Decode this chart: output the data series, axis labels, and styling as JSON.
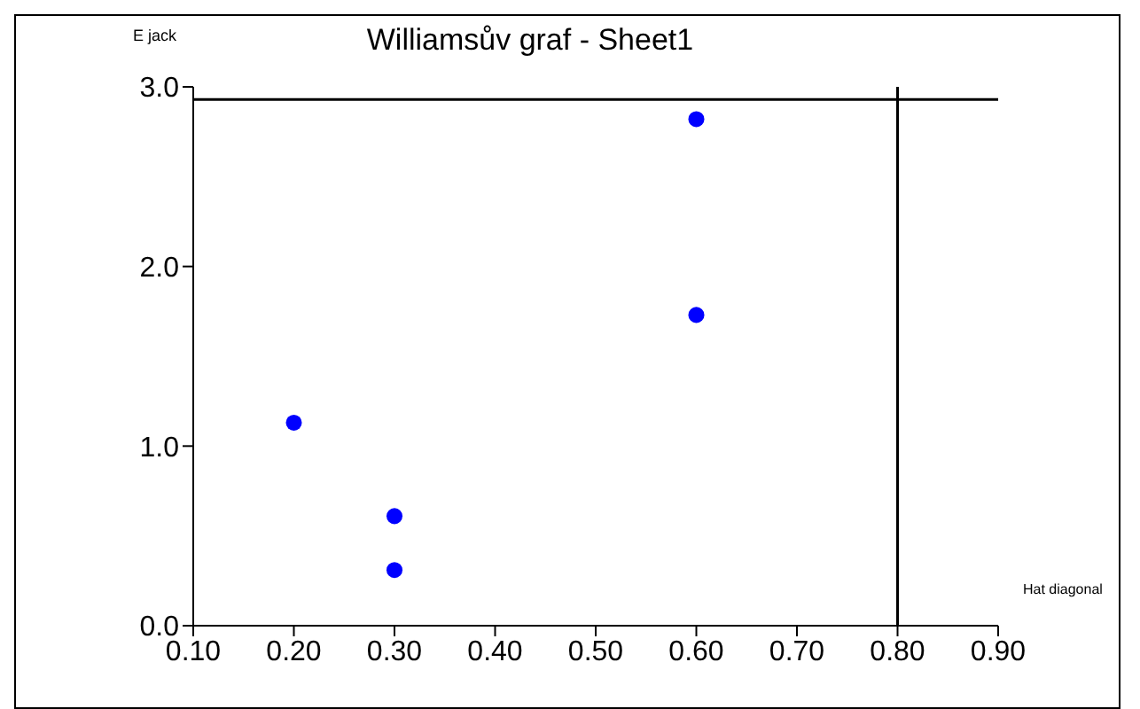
{
  "chart_data": {
    "type": "scatter",
    "title": "Williamsův graf - Sheet1",
    "xlabel": "Hat diagonal",
    "ylabel": "E jack",
    "x": [
      0.2,
      0.3,
      0.3,
      0.6,
      0.6
    ],
    "values": [
      1.13,
      0.61,
      0.31,
      2.82,
      1.73
    ],
    "color": "#0000ff",
    "marker": "circle",
    "xlim": [
      0.1,
      0.9
    ],
    "xticks": [
      {
        "value": 0.1,
        "label": "0.10"
      },
      {
        "value": 0.2,
        "label": "0.20"
      },
      {
        "value": 0.3,
        "label": "0.30"
      },
      {
        "value": 0.4,
        "label": "0.40"
      },
      {
        "value": 0.5,
        "label": "0.50"
      },
      {
        "value": 0.6,
        "label": "0.60"
      },
      {
        "value": 0.7,
        "label": "0.70"
      },
      {
        "value": 0.8,
        "label": "0.80"
      },
      {
        "value": 0.9,
        "label": "0.90"
      }
    ],
    "ylim": [
      0,
      3
    ],
    "yticks": [
      {
        "value": 0,
        "label": "0.0"
      },
      {
        "value": 1,
        "label": "1.0"
      },
      {
        "value": 2,
        "label": "2.0"
      },
      {
        "value": 3,
        "label": "3.0"
      }
    ],
    "ref_lines": [
      {
        "axis": "y",
        "value": 2.93,
        "color": "#000000"
      },
      {
        "axis": "x",
        "value": 0.8,
        "color": "#000000"
      }
    ],
    "grid": false,
    "legend": false
  }
}
